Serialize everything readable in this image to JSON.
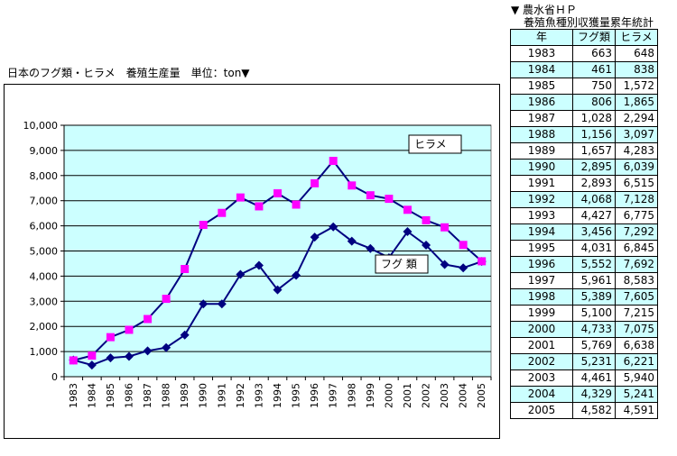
{
  "source_note": {
    "line1": "▼ 農水省ＨＰ",
    "line2": "養殖魚種別収獲量累年統計"
  },
  "table": {
    "headers": [
      "年",
      "フグ類",
      "ヒラメ"
    ],
    "rows": [
      [
        "1983",
        "663",
        "648"
      ],
      [
        "1984",
        "461",
        "838"
      ],
      [
        "1985",
        "750",
        "1,572"
      ],
      [
        "1986",
        "806",
        "1,865"
      ],
      [
        "1987",
        "1,028",
        "2,294"
      ],
      [
        "1988",
        "1,156",
        "3,097"
      ],
      [
        "1989",
        "1,657",
        "4,283"
      ],
      [
        "1990",
        "2,895",
        "6,039"
      ],
      [
        "1991",
        "2,893",
        "6,515"
      ],
      [
        "1992",
        "4,068",
        "7,128"
      ],
      [
        "1993",
        "4,427",
        "6,775"
      ],
      [
        "1994",
        "3,456",
        "7,292"
      ],
      [
        "1995",
        "4,031",
        "6,845"
      ],
      [
        "1996",
        "5,552",
        "7,692"
      ],
      [
        "1997",
        "5,961",
        "8,583"
      ],
      [
        "1998",
        "5,389",
        "7,605"
      ],
      [
        "1999",
        "5,100",
        "7,215"
      ],
      [
        "2000",
        "4,733",
        "7,075"
      ],
      [
        "2001",
        "5,769",
        "6,638"
      ],
      [
        "2002",
        "5,231",
        "6,221"
      ],
      [
        "2003",
        "4,461",
        "5,940"
      ],
      [
        "2004",
        "4,329",
        "5,241"
      ],
      [
        "2005",
        "4,582",
        "4,591"
      ]
    ]
  },
  "chart_data": {
    "type": "line",
    "title": "日本のフグ類・ヒラメ　養殖生産量　単位：ton▼",
    "x": [
      "1983",
      "1984",
      "1985",
      "1986",
      "1987",
      "1988",
      "1989",
      "1990",
      "1991",
      "1992",
      "1993",
      "1994",
      "1995",
      "1996",
      "1997",
      "1998",
      "1999",
      "2000",
      "2001",
      "2002",
      "2003",
      "2004",
      "2005"
    ],
    "series": [
      {
        "name": "フグ 類",
        "marker": "diamond",
        "color": "#000080",
        "marker_color": "#000080",
        "values": [
          663,
          461,
          750,
          806,
          1028,
          1156,
          1657,
          2895,
          2893,
          4068,
          4427,
          3456,
          4031,
          5552,
          5961,
          5389,
          5100,
          4733,
          5769,
          5231,
          4461,
          4329,
          4582
        ]
      },
      {
        "name": "ヒラメ",
        "marker": "square",
        "color": "#000080",
        "marker_color": "#ff00ff",
        "values": [
          648,
          838,
          1572,
          1865,
          2294,
          3097,
          4283,
          6039,
          6515,
          7128,
          6775,
          7292,
          6845,
          7692,
          8583,
          7605,
          7215,
          7075,
          6638,
          6221,
          5940,
          5241,
          4591
        ]
      }
    ],
    "ylim": [
      0,
      10000
    ],
    "yticks": [
      "0",
      "1,000",
      "2,000",
      "3,000",
      "4,000",
      "5,000",
      "6,000",
      "7,000",
      "8,000",
      "9,000",
      "10,000"
    ],
    "grid": true,
    "plot_background": "#ccffff"
  }
}
